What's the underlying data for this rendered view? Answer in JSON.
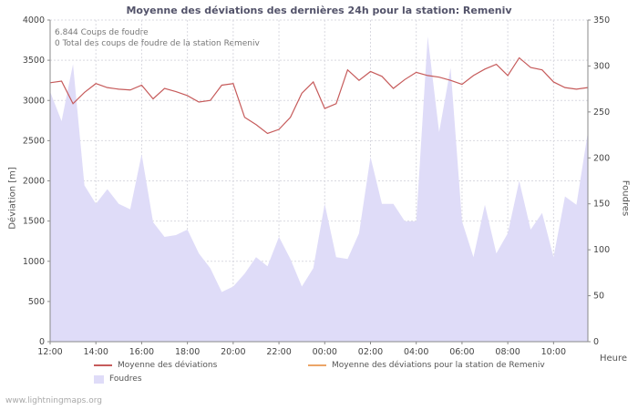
{
  "annotations": {
    "strikes": "6.844  Coups de foudre",
    "station_strikes": "0 Total des coups de foudre de la station Remeniv"
  },
  "footer": {
    "watermark": "www.lightningmaps.org"
  },
  "chart_data": {
    "type": "area+line",
    "title": "Moyenne des déviations des dernières 24h pour la station: Remeniv",
    "x": [
      "12:00",
      "12:30",
      "13:00",
      "13:30",
      "14:00",
      "14:30",
      "15:00",
      "15:30",
      "16:00",
      "16:30",
      "17:00",
      "17:30",
      "18:00",
      "18:30",
      "19:00",
      "19:30",
      "20:00",
      "20:30",
      "21:00",
      "21:30",
      "22:00",
      "22:30",
      "23:00",
      "23:30",
      "00:00",
      "00:30",
      "01:00",
      "01:30",
      "02:00",
      "02:30",
      "03:00",
      "03:30",
      "04:00",
      "04:30",
      "05:00",
      "05:30",
      "06:00",
      "06:30",
      "07:00",
      "07:30",
      "08:00",
      "08:30",
      "09:00",
      "09:30",
      "10:00",
      "10:30",
      "11:00",
      "11:30"
    ],
    "x_axis": {
      "label": "Heure",
      "tick_labels": [
        "12:00",
        "14:00",
        "16:00",
        "18:00",
        "20:00",
        "22:00",
        "00:00",
        "02:00",
        "04:00",
        "06:00",
        "08:00",
        "10:00"
      ],
      "tick_indices": [
        0,
        4,
        8,
        12,
        16,
        20,
        24,
        28,
        32,
        36,
        40,
        44
      ]
    },
    "left_axis": {
      "label": "Déviation [m]",
      "min": 0,
      "max": 4000,
      "ticks": [
        0,
        500,
        1000,
        1500,
        2000,
        2500,
        3000,
        3500,
        4000
      ],
      "grid": true
    },
    "right_axis": {
      "label": "Foudres",
      "min": 0,
      "max": 350,
      "ticks": [
        0,
        50,
        100,
        150,
        200,
        250,
        300,
        350
      ]
    },
    "series": [
      {
        "name": "Moyenne des déviations",
        "axis": "left",
        "type": "line",
        "color": "#c65b5b",
        "values": [
          3220,
          3240,
          2960,
          3100,
          3210,
          3160,
          3140,
          3130,
          3190,
          3020,
          3150,
          3110,
          3060,
          2980,
          3000,
          3190,
          3210,
          2790,
          2700,
          2590,
          2640,
          2790,
          3090,
          3230,
          2900,
          2960,
          3380,
          3250,
          3360,
          3300,
          3150,
          3260,
          3350,
          3310,
          3290,
          3250,
          3200,
          3310,
          3390,
          3450,
          3310,
          3530,
          3410,
          3380,
          3230,
          3160,
          3140,
          3160
        ]
      },
      {
        "name": "Moyenne des déviations pour la station de Remeniv",
        "axis": "left",
        "type": "line",
        "color": "#eba567",
        "values": []
      },
      {
        "name": "Foudres",
        "axis": "right",
        "type": "area",
        "color": "#dfdcf8",
        "values": [
          272,
          240,
          302,
          170,
          150,
          166,
          150,
          144,
          204,
          130,
          114,
          116,
          122,
          96,
          80,
          54,
          60,
          74,
          92,
          82,
          114,
          90,
          60,
          80,
          150,
          92,
          90,
          118,
          201,
          150,
          150,
          131,
          131,
          332,
          228,
          298,
          131,
          92,
          149,
          96,
          118,
          175,
          122,
          140,
          92,
          158,
          149,
          228
        ]
      }
    ],
    "legend_position": "bottom"
  }
}
